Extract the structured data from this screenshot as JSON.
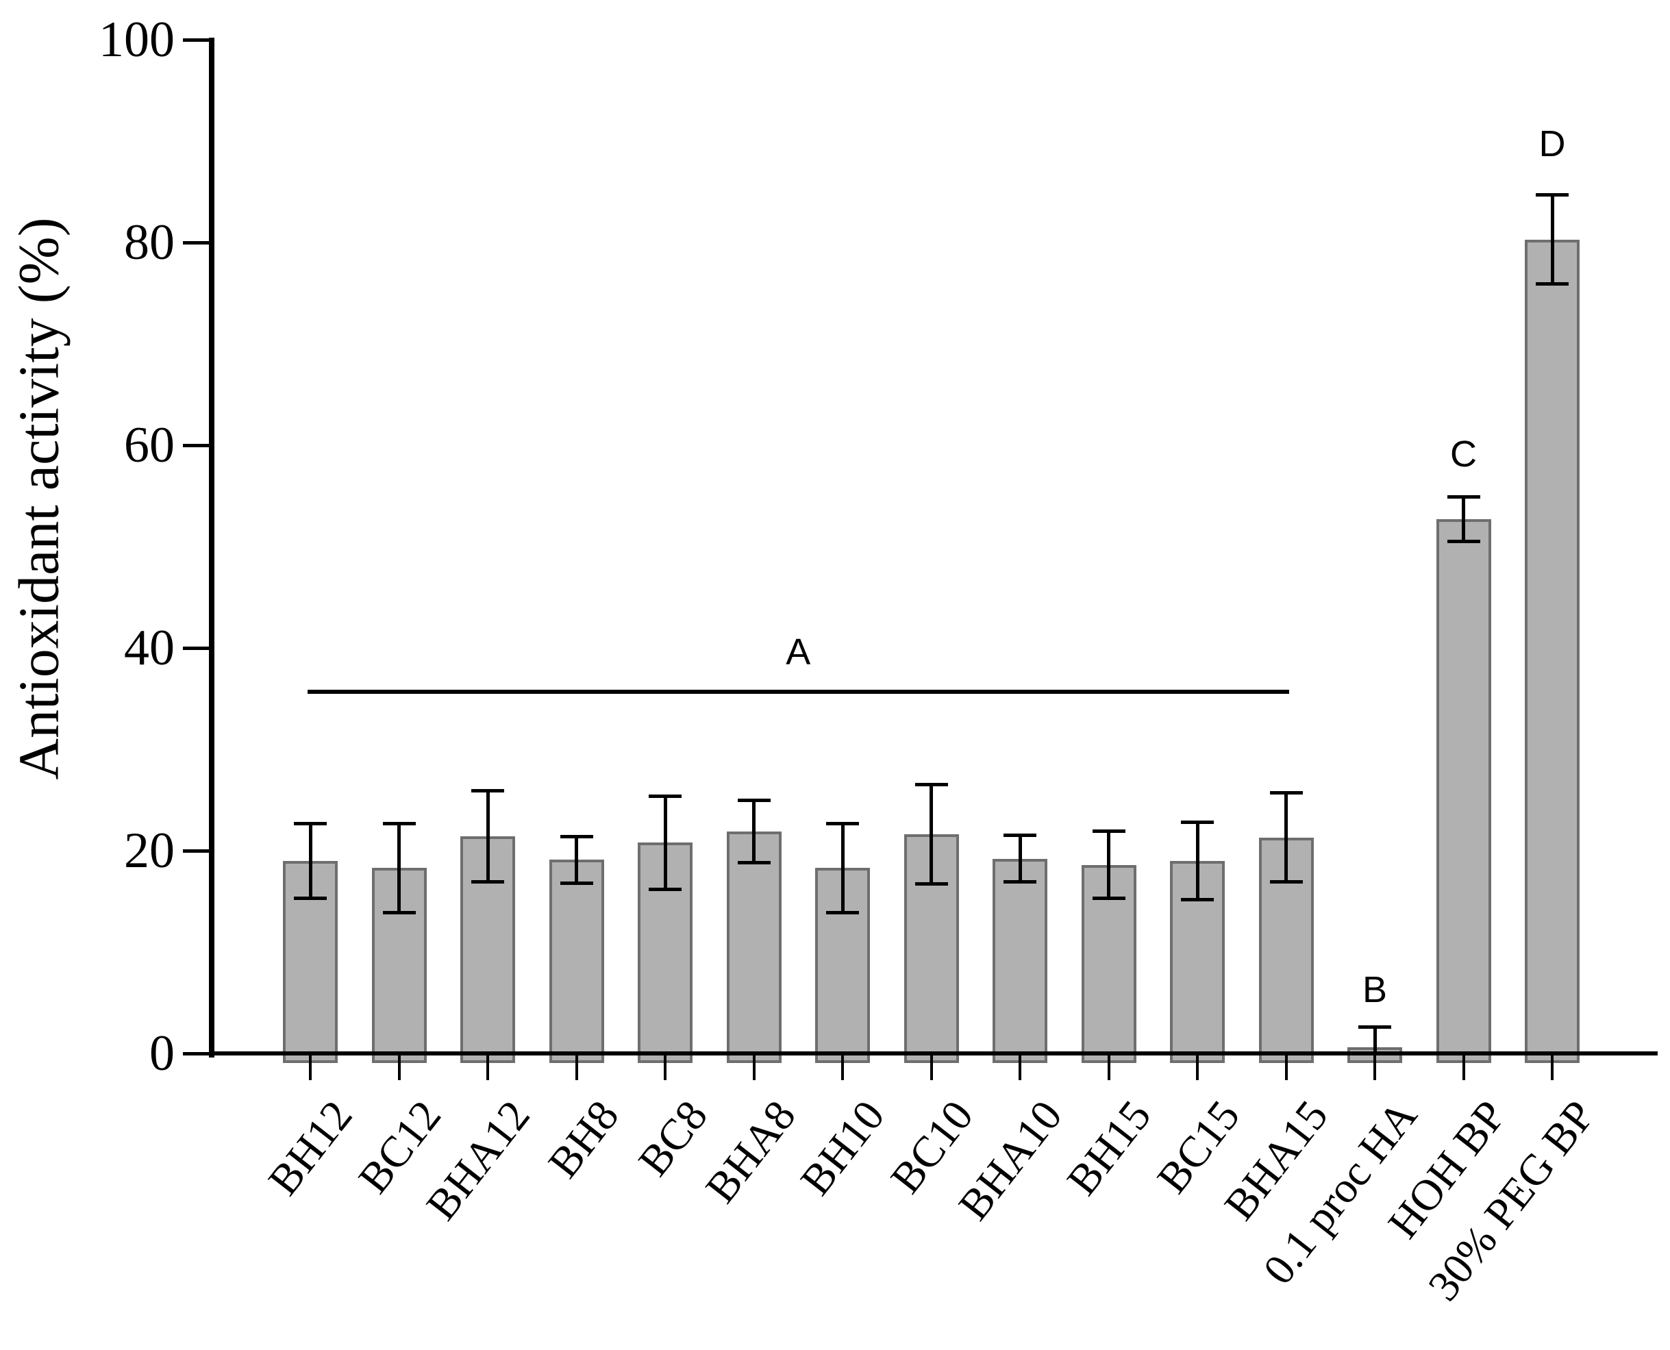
{
  "chart_data": {
    "type": "bar",
    "title": "",
    "xlabel": "",
    "ylabel": "Antioxidant activity (%)",
    "ylim": [
      0,
      100
    ],
    "yticks": [
      0,
      20,
      40,
      60,
      80,
      100
    ],
    "grid": false,
    "legend": null,
    "bar_fill_color": "#b1b1b1",
    "bar_border_color": "#6e6e6e",
    "error_bar_color": "#000000",
    "axis_color": "#000000",
    "categories": [
      "BH12",
      "BC12",
      "BHA12",
      "BH8",
      "BC8",
      "BHA8",
      "BH10",
      "BC10",
      "BHA10",
      "BH15",
      "BC15",
      "BHA15",
      "0.1 proc HA",
      "HOH BP",
      "30% PEG BP"
    ],
    "values": [
      19.0,
      18.3,
      21.4,
      19.1,
      20.8,
      21.9,
      18.3,
      21.6,
      19.2,
      18.6,
      19.0,
      21.3,
      0.6,
      52.7,
      80.3
    ],
    "errors": [
      3.7,
      4.4,
      4.5,
      2.3,
      4.6,
      3.1,
      4.4,
      4.9,
      2.3,
      3.3,
      3.8,
      4.4,
      2.0,
      2.2,
      4.4
    ],
    "significance": {
      "group_line": {
        "label": "A",
        "from_category": "BH12",
        "to_category": "BHA15",
        "line_y_value": 35.7,
        "label_y_value": 39.6
      },
      "letters": [
        {
          "label": "B",
          "category": "0.1 proc HA",
          "y_value": 6.3
        },
        {
          "label": "C",
          "category": "HOH BP",
          "y_value": 59.1
        },
        {
          "label": "D",
          "category": "30% PEG BP",
          "y_value": 89.7
        }
      ]
    }
  }
}
